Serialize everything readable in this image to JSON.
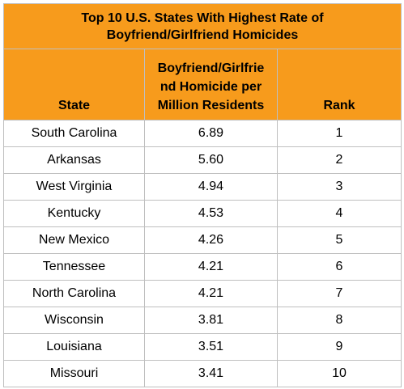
{
  "title_lines": [
    "Top 10 U.S. States With Highest Rate of",
    "Boyfriend/Girlfriend Homicides"
  ],
  "headers": {
    "state": "State",
    "rate_lines": [
      "Boyfriend/Girlfrie",
      "nd Homicide per",
      "Million Residents"
    ],
    "rank": "Rank"
  },
  "rows": [
    {
      "state": "South Carolina",
      "rate": "6.89",
      "rank": "1"
    },
    {
      "state": "Arkansas",
      "rate": "5.60",
      "rank": "2"
    },
    {
      "state": "West Virginia",
      "rate": "4.94",
      "rank": "3"
    },
    {
      "state": "Kentucky",
      "rate": "4.53",
      "rank": "4"
    },
    {
      "state": "New Mexico",
      "rate": "4.26",
      "rank": "5"
    },
    {
      "state": "Tennessee",
      "rate": "4.21",
      "rank": "6"
    },
    {
      "state": "North Carolina",
      "rate": "4.21",
      "rank": "7"
    },
    {
      "state": "Wisconsin",
      "rate": "3.81",
      "rank": "8"
    },
    {
      "state": "Louisiana",
      "rate": "3.51",
      "rank": "9"
    },
    {
      "state": "Missouri",
      "rate": "3.41",
      "rank": "10"
    }
  ],
  "colors": {
    "header_background": "#f79b1c",
    "border": "#bfbfbf"
  }
}
